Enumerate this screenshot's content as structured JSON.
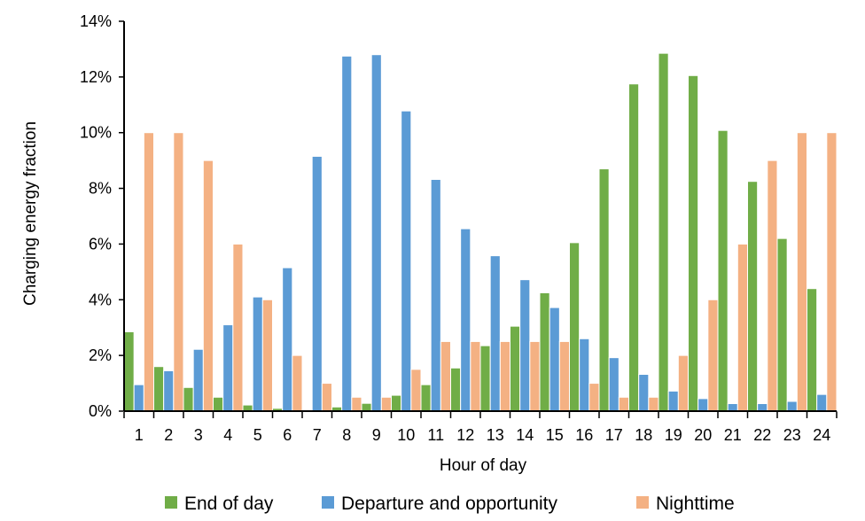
{
  "chart_data": {
    "type": "bar",
    "xlabel": "Hour of day",
    "ylabel": "Charging energy fraction",
    "ylim": [
      0,
      14
    ],
    "yticks": [
      "0%",
      "2%",
      "4%",
      "6%",
      "8%",
      "10%",
      "12%",
      "14%"
    ],
    "categories": [
      "1",
      "2",
      "3",
      "4",
      "5",
      "6",
      "7",
      "8",
      "9",
      "10",
      "11",
      "12",
      "13",
      "14",
      "15",
      "16",
      "17",
      "18",
      "19",
      "20",
      "21",
      "22",
      "23",
      "24"
    ],
    "legend_position": "bottom",
    "grid": false,
    "series": [
      {
        "name": "End of day",
        "color": "#70AD47",
        "values": [
          2.85,
          1.6,
          0.85,
          0.5,
          0.22,
          0.1,
          0.0,
          0.15,
          0.28,
          0.57,
          0.95,
          1.55,
          2.35,
          3.05,
          4.25,
          6.05,
          8.7,
          11.75,
          12.85,
          12.05,
          10.08,
          8.25,
          6.2,
          4.4
        ]
      },
      {
        "name": "Departure and opportunity",
        "color": "#5B9BD5",
        "values": [
          0.95,
          1.45,
          2.22,
          3.1,
          4.1,
          5.15,
          9.15,
          12.75,
          12.8,
          10.78,
          8.32,
          6.55,
          5.58,
          4.72,
          3.72,
          2.6,
          1.92,
          1.32,
          0.72,
          0.45,
          0.27,
          0.27,
          0.35,
          0.6
        ]
      },
      {
        "name": "Nighttime",
        "color": "#F4B183",
        "values": [
          10,
          10,
          9,
          6,
          4,
          2,
          1,
          0.5,
          0.5,
          1.5,
          2.5,
          2.5,
          2.5,
          2.5,
          2.5,
          1,
          0.5,
          0.5,
          2,
          4,
          6,
          9,
          10,
          10
        ]
      }
    ]
  }
}
